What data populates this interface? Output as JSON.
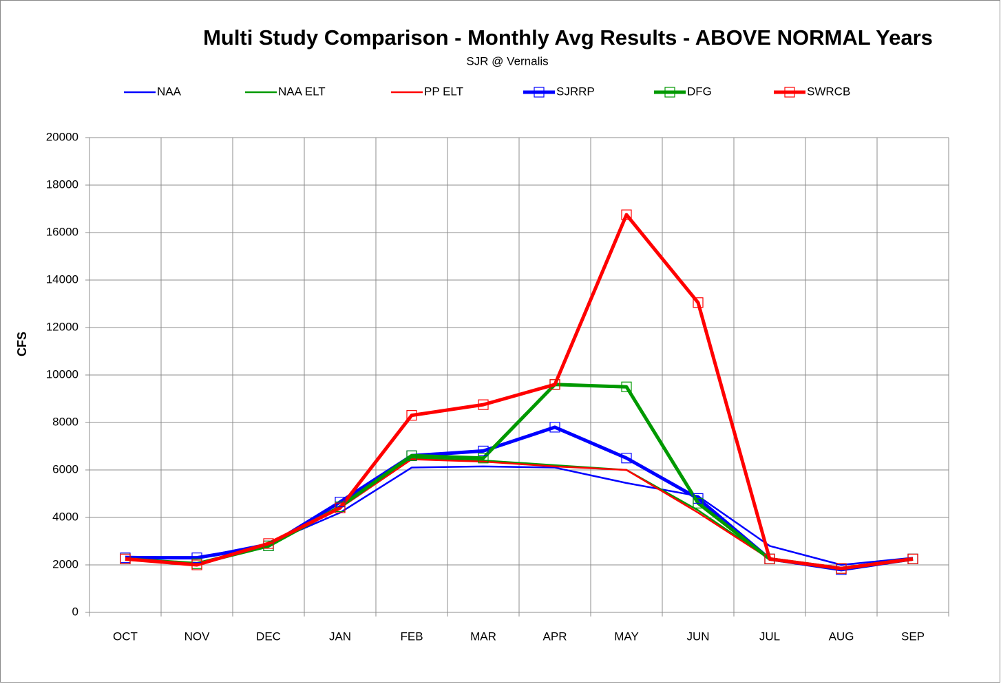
{
  "chart_data": {
    "type": "line",
    "title": "Multi Study Comparison - Monthly Avg Results -  ABOVE NORMAL Years",
    "subtitle": "SJR @ Vernalis",
    "y_label": "CFS",
    "categories": [
      "OCT",
      "NOV",
      "DEC",
      "JAN",
      "FEB",
      "MAR",
      "APR",
      "MAY",
      "JUN",
      "JUL",
      "AUG",
      "SEP"
    ],
    "series": [
      {
        "name": "NAA",
        "color": "#0000ff",
        "thick": false,
        "marker": false,
        "values": [
          2350,
          2300,
          2900,
          4200,
          6100,
          6150,
          6100,
          5450,
          4900,
          2800,
          2000,
          2300
        ]
      },
      {
        "name": "NAA ELT",
        "color": "#009900",
        "thick": false,
        "marker": false,
        "values": [
          2250,
          2050,
          2800,
          4400,
          6500,
          6400,
          6200,
          6000,
          4300,
          2250,
          1850,
          2250
        ]
      },
      {
        "name": "PP ELT",
        "color": "#ff0000",
        "thick": false,
        "marker": false,
        "values": [
          2250,
          2050,
          2900,
          4400,
          6450,
          6350,
          6150,
          6000,
          4200,
          2250,
          1850,
          2250
        ]
      },
      {
        "name": "SJRRP",
        "color": "#0000ff",
        "thick": true,
        "marker": true,
        "values": [
          2300,
          2300,
          2800,
          4650,
          6600,
          6800,
          7800,
          6500,
          4800,
          2250,
          1800,
          2250
        ]
      },
      {
        "name": "DFG",
        "color": "#009900",
        "thick": true,
        "marker": true,
        "values": [
          2250,
          2050,
          2800,
          4450,
          6600,
          6500,
          9600,
          9500,
          4600,
          2250,
          1850,
          2250
        ]
      },
      {
        "name": "SWRCB",
        "color": "#ff0000",
        "thick": true,
        "marker": true,
        "values": [
          2250,
          2000,
          2900,
          4400,
          8300,
          8750,
          9600,
          16750,
          13050,
          2250,
          1850,
          2250
        ]
      }
    ],
    "ylim": [
      0,
      20000
    ],
    "yticks": [
      0,
      2000,
      4000,
      6000,
      8000,
      10000,
      12000,
      14000,
      16000,
      18000,
      20000
    ],
    "grid": true,
    "legend": "top"
  }
}
